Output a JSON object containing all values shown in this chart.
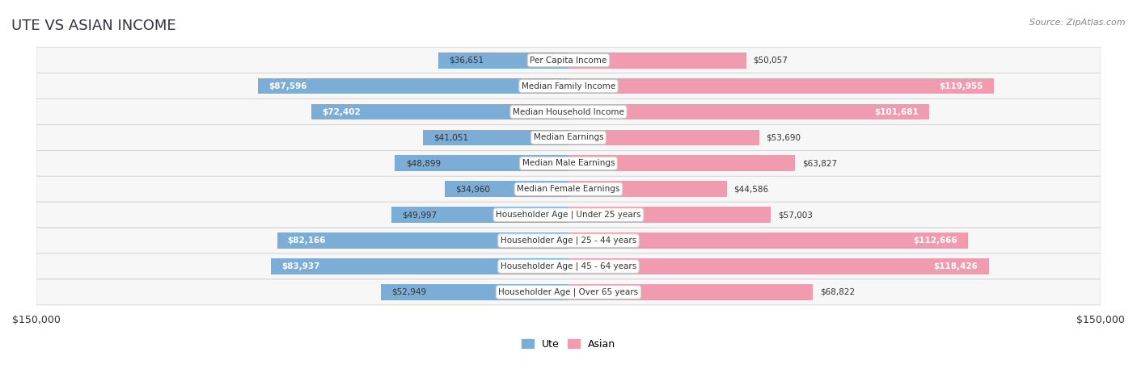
{
  "title": "UTE VS ASIAN INCOME",
  "source": "Source: ZipAtlas.com",
  "categories": [
    "Per Capita Income",
    "Median Family Income",
    "Median Household Income",
    "Median Earnings",
    "Median Male Earnings",
    "Median Female Earnings",
    "Householder Age | Under 25 years",
    "Householder Age | 25 - 44 years",
    "Householder Age | 45 - 64 years",
    "Householder Age | Over 65 years"
  ],
  "ute_values": [
    36651,
    87596,
    72402,
    41051,
    48899,
    34960,
    49997,
    82166,
    83937,
    52949
  ],
  "asian_values": [
    50057,
    119955,
    101681,
    53690,
    63827,
    44586,
    57003,
    112666,
    118426,
    68822
  ],
  "ute_labels": [
    "$36,651",
    "$87,596",
    "$72,402",
    "$41,051",
    "$48,899",
    "$34,960",
    "$49,997",
    "$82,166",
    "$83,937",
    "$52,949"
  ],
  "asian_labels": [
    "$50,057",
    "$119,955",
    "$101,681",
    "$53,690",
    "$63,827",
    "$44,586",
    "$57,003",
    "$112,666",
    "$118,426",
    "$68,822"
  ],
  "ute_color": "#7badd6",
  "ute_color_dark": "#5b8dbf",
  "asian_color": "#f09bb0",
  "asian_color_dark": "#e8618a",
  "max_value": 150000,
  "axis_label_left": "$150,000",
  "axis_label_right": "$150,000",
  "bg_color": "#ffffff",
  "row_bg_color": "#f0f0f0",
  "label_color_dark": "#333333",
  "label_color_white": "#ffffff",
  "title_color": "#333344",
  "source_color": "#888888"
}
